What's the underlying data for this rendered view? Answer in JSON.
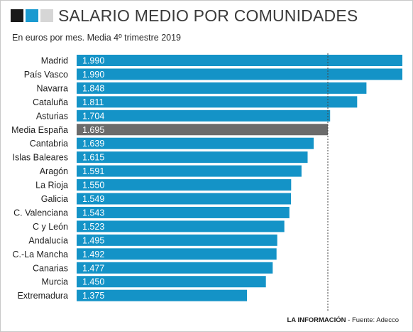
{
  "header": {
    "title": "SALARIO MEDIO POR COMUNIDADES",
    "subtitle": "En euros por mes. Media 4º trimestre 2019",
    "square_colors": [
      "#1a1a1a",
      "#1a9ad0",
      "#d6d6d6"
    ]
  },
  "footer": {
    "brand": "LA INFORMACIÓN",
    "source": " - Fuente: Adecco"
  },
  "chart_data": {
    "type": "bar",
    "orientation": "horizontal",
    "title": "SALARIO MEDIO POR COMUNIDADES",
    "subtitle": "En euros por mes. Media 4º trimestre 2019",
    "categories": [
      "Madrid",
      "País Vasco",
      "Navarra",
      "Cataluña",
      "Asturias",
      "Media España",
      "Cantabria",
      "Islas Baleares",
      "Aragón",
      "La Rioja",
      "Galicia",
      "C. Valenciana",
      "C y León",
      "Andalucía",
      "C.-La Mancha",
      "Canarias",
      "Murcia",
      "Extremadura"
    ],
    "values": [
      1990,
      1990,
      1848,
      1811,
      1704,
      1695,
      1639,
      1615,
      1591,
      1550,
      1549,
      1543,
      1523,
      1495,
      1492,
      1477,
      1450,
      1375
    ],
    "value_labels": [
      "1.990",
      "1.990",
      "1.848",
      "1.811",
      "1.704",
      "1.695",
      "1.639",
      "1.615",
      "1.591",
      "1.550",
      "1.549",
      "1.543",
      "1.523",
      "1.495",
      "1.492",
      "1.477",
      "1.450",
      "1.375"
    ],
    "highlight_category": "Media España",
    "reference_line": 1695,
    "colors": {
      "bar": "#1493c7",
      "highlight": "#6b6b6b"
    }
  }
}
